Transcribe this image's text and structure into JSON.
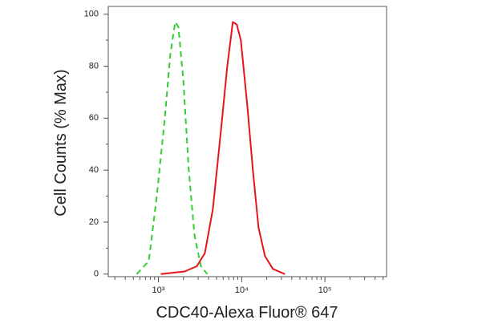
{
  "chart_data": {
    "type": "line",
    "x_label": "CDC40-Alexa Fluor® 647",
    "y_label": "Cell Counts (% Max)",
    "x_log": true,
    "xlim": [
      250,
      550000
    ],
    "ylim": [
      -1,
      103
    ],
    "xticks": [
      {
        "value": 1000,
        "label": "10³"
      },
      {
        "value": 10000,
        "label": "10⁴"
      },
      {
        "value": 100000,
        "label": "10⁵"
      }
    ],
    "yticks": [
      0,
      20,
      40,
      60,
      80,
      100
    ],
    "series": [
      {
        "color": "#33cc33",
        "dashed": true,
        "x": [
          550,
          767,
          956,
          1194,
          1394,
          1592,
          1740,
          1987,
          2317,
          2710,
          3236,
          3864
        ],
        "values": [
          0,
          5,
          30,
          60,
          85,
          97,
          95,
          75,
          40,
          15,
          3,
          0
        ]
      },
      {
        "color": "#e8141c",
        "dashed": false,
        "x": [
          1069,
          2075,
          2894,
          3612,
          4508,
          5623,
          6719,
          7834,
          8750,
          9774,
          11670,
          13640,
          15920,
          19010,
          23710,
          33050
        ],
        "values": [
          0,
          1,
          3,
          8,
          25,
          55,
          80,
          97,
          96,
          90,
          65,
          40,
          18,
          7,
          2,
          0
        ]
      }
    ]
  }
}
